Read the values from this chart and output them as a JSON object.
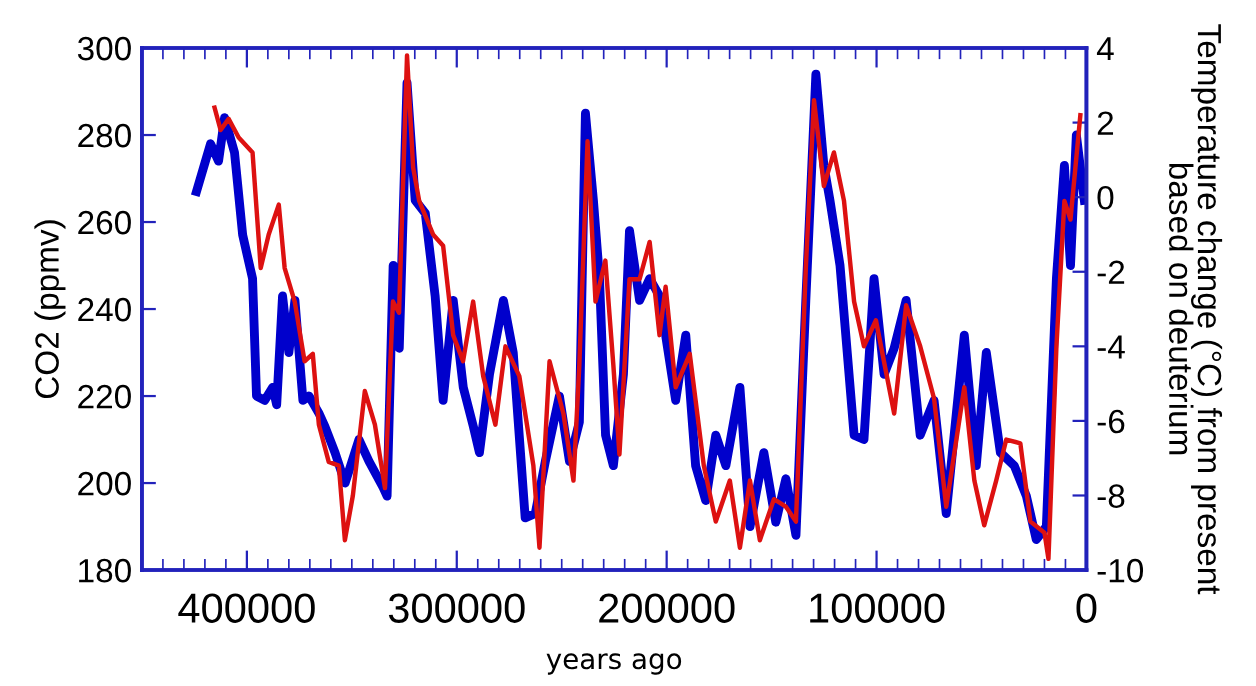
{
  "chart_data": {
    "type": "line",
    "xlabel": "years ago",
    "ylabel": "CO2 (ppmv)",
    "y2label": "Temperature change (°C) from present\nbased on deuterium",
    "xlim": [
      450000,
      0
    ],
    "xticks": [
      400000,
      300000,
      200000,
      100000,
      0
    ],
    "ylim": [
      180,
      300
    ],
    "yticks": [
      180,
      200,
      220,
      240,
      260,
      280,
      300
    ],
    "y2lim": [
      -10,
      4
    ],
    "y2ticks": [
      -10,
      -8,
      -6,
      -4,
      -2,
      0,
      2,
      4
    ],
    "grid": false,
    "legend": false,
    "line_style": "solid",
    "marker": "none",
    "series": [
      {
        "color": "#0000cc",
        "axis": "y",
        "x": [
          424000,
          417300,
          413500,
          410600,
          405900,
          402000,
          397300,
          395400,
          391500,
          387700,
          385800,
          383000,
          380000,
          377100,
          373300,
          370400,
          365600,
          362800,
          358000,
          353200,
          346600,
          341800,
          335100,
          333200,
          330300,
          327400,
          323700,
          319800,
          315000,
          310300,
          306500,
          301700,
          296900,
          292100,
          289200,
          284400,
          277800,
          273100,
          267400,
          262600,
          257800,
          251100,
          246300,
          241600,
          238700,
          234900,
          232000,
          229100,
          225400,
          220600,
          217700,
          212900,
          208100,
          203400,
          200500,
          195700,
          190900,
          186200,
          181400,
          176600,
          171800,
          165100,
          160300,
          153700,
          148000,
          143200,
          138400,
          133700,
          128900,
          125100,
          122200,
          117400,
          110700,
          106000,
          101200,
          96400,
          91600,
          85900,
          79200,
          72600,
          66800,
          58200,
          52500,
          47700,
          41000,
          34400,
          28600,
          23900,
          19100,
          14300,
          10500,
          7600,
          4800,
          1000
        ],
        "values": [
          267,
          278,
          274,
          284,
          276,
          257,
          247,
          220,
          219,
          222,
          218,
          243,
          230,
          242,
          219,
          220,
          216,
          213,
          207,
          200,
          210,
          205,
          199,
          197,
          250,
          231,
          292,
          265,
          262,
          243,
          219,
          242,
          222,
          213,
          207,
          225,
          242,
          230,
          192,
          193,
          205,
          220,
          205,
          214,
          285,
          265,
          247,
          211,
          204,
          225,
          258,
          242,
          247,
          243,
          234,
          219,
          234,
          204,
          196,
          211,
          204,
          222,
          190,
          207,
          191,
          201,
          188,
          242,
          294,
          273,
          265,
          250,
          211,
          210,
          247,
          225,
          231,
          242,
          211,
          219,
          193,
          234,
          204,
          230,
          207,
          204,
          197,
          187,
          190,
          247,
          273,
          250,
          280,
          265
        ]
      },
      {
        "color": "#dd1111",
        "axis": "y2",
        "x": [
          415400,
          412500,
          408700,
          403900,
          397300,
          393400,
          389600,
          384800,
          382000,
          377200,
          372500,
          368600,
          365700,
          361000,
          356200,
          353300,
          349500,
          343800,
          339000,
          334200,
          330400,
          327500,
          323700,
          320800,
          317900,
          311300,
          306500,
          301700,
          297000,
          292200,
          287400,
          281600,
          276800,
          270200,
          263500,
          260600,
          255800,
          249200,
          244400,
          241600,
          237700,
          233900,
          229200,
          225400,
          222500,
          217700,
          212900,
          208100,
          203400,
          200500,
          195700,
          189000,
          182300,
          176600,
          169900,
          165100,
          160300,
          155600,
          148900,
          143200,
          138400,
          133700,
          129800,
          125100,
          120300,
          115500,
          110700,
          106000,
          100300,
          91600,
          85900,
          79200,
          72600,
          66800,
          58200,
          53400,
          48700,
          43000,
          38200,
          31500,
          26700,
          20000,
          18100,
          14300,
          10500,
          7600,
          2900
        ],
        "values": [
          2.4,
          1.8,
          2.1,
          1.6,
          1.2,
          -1.9,
          -1.0,
          -0.2,
          -1.9,
          -2.8,
          -4.4,
          -4.2,
          -6.1,
          -7.1,
          -7.2,
          -9.2,
          -8.0,
          -5.2,
          -6.1,
          -7.8,
          -2.8,
          -3.1,
          3.8,
          0.8,
          -0.1,
          -1.0,
          -1.3,
          -3.7,
          -4.4,
          -2.8,
          -4.8,
          -6.1,
          -4.0,
          -4.8,
          -7.2,
          -9.4,
          -4.4,
          -5.8,
          -7.6,
          -4.5,
          1.5,
          -2.8,
          -1.7,
          -4.5,
          -6.9,
          -2.2,
          -2.2,
          -1.2,
          -3.7,
          -2.4,
          -5.1,
          -4.2,
          -7.2,
          -8.7,
          -7.6,
          -9.4,
          -7.6,
          -9.2,
          -8.1,
          -8.3,
          -8.7,
          -1.9,
          2.6,
          0.3,
          1.2,
          -0.1,
          -2.8,
          -4.0,
          -3.3,
          -5.8,
          -2.9,
          -4.0,
          -5.4,
          -8.3,
          -5.1,
          -7.6,
          -8.8,
          -7.6,
          -6.5,
          -6.6,
          -8.7,
          -9.0,
          -9.7,
          -4.0,
          -0.1,
          -0.6,
          2.2
        ]
      }
    ]
  }
}
